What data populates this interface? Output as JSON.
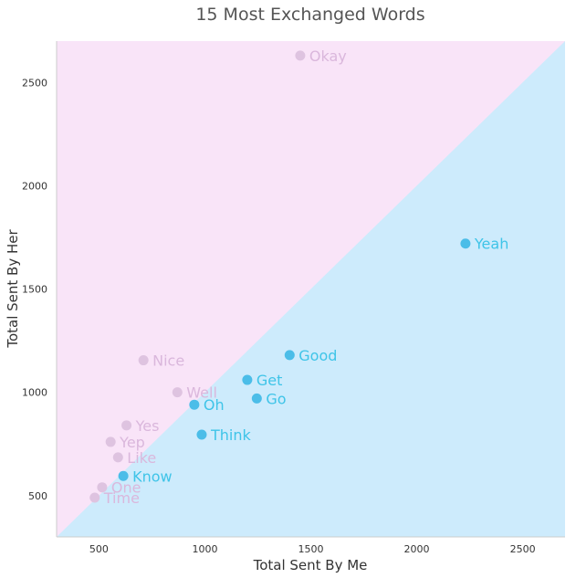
{
  "chart_data": {
    "type": "scatter",
    "title": "15 Most Exchanged Words",
    "xlabel": "Total Sent By Me",
    "ylabel": "Total Sent By Her",
    "xlim": [
      300,
      2700
    ],
    "ylim": [
      300,
      2700
    ],
    "xticks": [
      "500",
      "1000",
      "1500",
      "2000",
      "2500"
    ],
    "yticks": [
      "500",
      "1000",
      "1500",
      "2000",
      "2500"
    ],
    "xtick_values": [
      500,
      1000,
      1500,
      2000,
      2500
    ],
    "ytick_values": [
      500,
      1000,
      1500,
      2000,
      2500
    ],
    "grid": false,
    "regions": {
      "upper_left_color": "#f9e4f8",
      "lower_right_color": "#cdebfc"
    },
    "colors": {
      "her_point": "#dec3e0",
      "her_label": "#dab7dc",
      "me_point": "#4bbde8",
      "me_label": "#3fc4e8"
    },
    "points": [
      {
        "label": "Okay",
        "x": 1450,
        "y": 2630,
        "group": "her"
      },
      {
        "label": "Yeah",
        "x": 2230,
        "y": 1720,
        "group": "me"
      },
      {
        "label": "Good",
        "x": 1400,
        "y": 1180,
        "group": "me"
      },
      {
        "label": "Nice",
        "x": 710,
        "y": 1155,
        "group": "her"
      },
      {
        "label": "Get",
        "x": 1200,
        "y": 1060,
        "group": "me"
      },
      {
        "label": "Well",
        "x": 870,
        "y": 1000,
        "group": "her"
      },
      {
        "label": "Go",
        "x": 1245,
        "y": 970,
        "group": "me"
      },
      {
        "label": "Oh",
        "x": 950,
        "y": 940,
        "group": "me"
      },
      {
        "label": "Yes",
        "x": 630,
        "y": 840,
        "group": "her"
      },
      {
        "label": "Think",
        "x": 985,
        "y": 795,
        "group": "me"
      },
      {
        "label": "Yep",
        "x": 555,
        "y": 760,
        "group": "her"
      },
      {
        "label": "Like",
        "x": 590,
        "y": 685,
        "group": "her"
      },
      {
        "label": "Know",
        "x": 615,
        "y": 595,
        "group": "me"
      },
      {
        "label": "One",
        "x": 515,
        "y": 540,
        "group": "her"
      },
      {
        "label": "Time",
        "x": 480,
        "y": 490,
        "group": "her"
      }
    ]
  }
}
